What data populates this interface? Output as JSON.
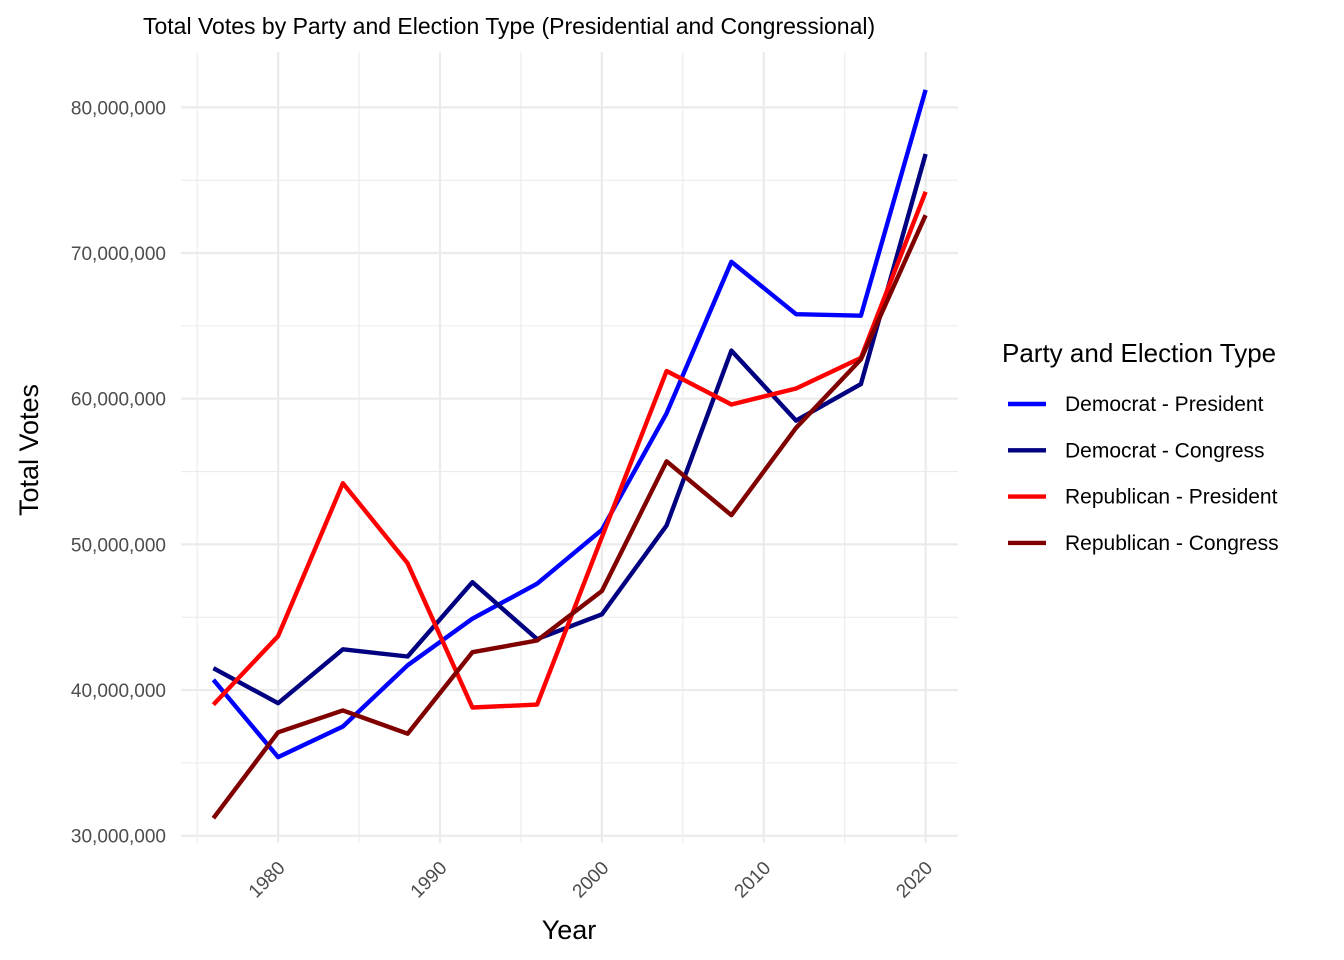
{
  "chart_data": {
    "type": "line",
    "title": "Total Votes by Party and Election Type (Presidential and Congressional)",
    "xlabel": "Year",
    "ylabel": "Total Votes",
    "x": [
      1976,
      1980,
      1984,
      1988,
      1992,
      1996,
      2000,
      2004,
      2008,
      2012,
      2016,
      2020
    ],
    "xlim": [
      1974,
      2022
    ],
    "ylim": [
      29500000,
      83800000
    ],
    "x_ticks": [
      1980,
      1990,
      2000,
      2010,
      2020
    ],
    "x_tick_labels": [
      "1980",
      "1990",
      "2000",
      "2010",
      "2020"
    ],
    "y_ticks": [
      30000000,
      40000000,
      50000000,
      60000000,
      70000000,
      80000000
    ],
    "y_tick_labels": [
      "30,000,000",
      "40,000,000",
      "50,000,000",
      "60,000,000",
      "70,000,000",
      "80,000,000"
    ],
    "grid": true,
    "legend_title": "Party and Election Type",
    "legend_position": "right",
    "series": [
      {
        "name": "Democrat - President",
        "color": "#0000FF",
        "values": [
          40700000,
          35400000,
          37500000,
          41700000,
          44900000,
          47300000,
          51000000,
          59000000,
          69400000,
          65800000,
          65700000,
          81200000
        ]
      },
      {
        "name": "Democrat - Congress",
        "color": "#000080",
        "values": [
          41500000,
          39100000,
          42800000,
          42300000,
          47400000,
          43500000,
          45200000,
          51300000,
          63300000,
          58500000,
          61000000,
          76800000
        ]
      },
      {
        "name": "Republican - President",
        "color": "#FF0000",
        "values": [
          39000000,
          43700000,
          54200000,
          48700000,
          38800000,
          39000000,
          50500000,
          61900000,
          59600000,
          60700000,
          62800000,
          74200000
        ]
      },
      {
        "name": "Republican - Congress",
        "color": "#800000",
        "values": [
          31200000,
          37100000,
          38600000,
          37000000,
          42600000,
          43400000,
          46800000,
          55700000,
          52000000,
          58000000,
          62700000,
          72600000
        ]
      }
    ]
  }
}
